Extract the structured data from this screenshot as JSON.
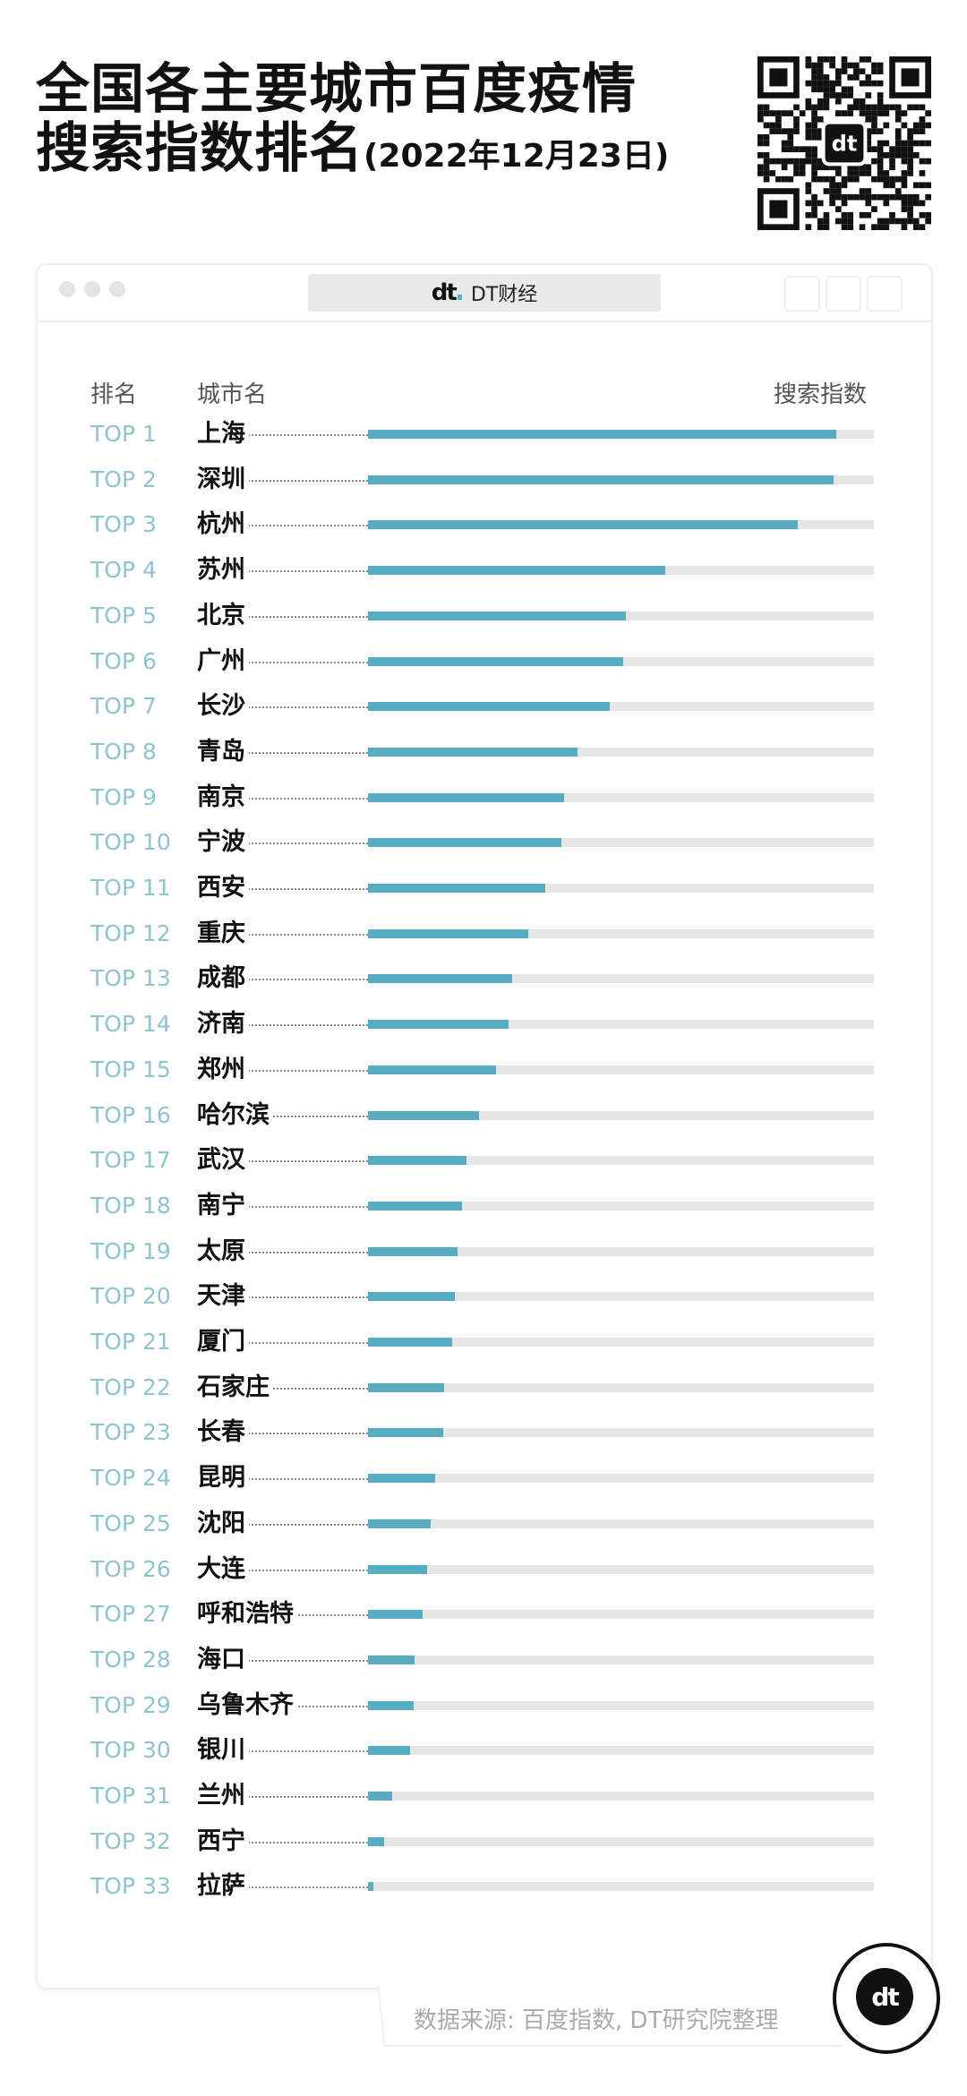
{
  "title": {
    "line1": "全国各主要城市百度疫情",
    "line2": "搜索指数排名",
    "date": "(2022年12月23日)"
  },
  "window": {
    "brand": "DT财经"
  },
  "colors": {
    "bar": "#56acc3",
    "track": "#e6e6e6",
    "rank": "#8fc4cf"
  },
  "footer": {
    "source": "数据来源: 百度指数, DT研究院整理"
  },
  "chart_data": {
    "type": "bar",
    "orientation": "horizontal",
    "columns": {
      "rank": "排名",
      "city": "城市名",
      "value": "搜索指数"
    },
    "value_unit": "fraction of maximum track length (estimated, no axis shown)",
    "rows": [
      {
        "rank": "TOP 1",
        "city": "上海",
        "value": 0.926
      },
      {
        "rank": "TOP 2",
        "city": "深圳",
        "value": 0.921
      },
      {
        "rank": "TOP 3",
        "city": "杭州",
        "value": 0.85
      },
      {
        "rank": "TOP 4",
        "city": "苏州",
        "value": 0.588
      },
      {
        "rank": "TOP 5",
        "city": "北京",
        "value": 0.509
      },
      {
        "rank": "TOP 6",
        "city": "广州",
        "value": 0.504
      },
      {
        "rank": "TOP 7",
        "city": "长沙",
        "value": 0.478
      },
      {
        "rank": "TOP 8",
        "city": "青岛",
        "value": 0.414
      },
      {
        "rank": "TOP 9",
        "city": "南京",
        "value": 0.388
      },
      {
        "rank": "TOP 10",
        "city": "宁波",
        "value": 0.383
      },
      {
        "rank": "TOP 11",
        "city": "西安",
        "value": 0.351
      },
      {
        "rank": "TOP 12",
        "city": "重庆",
        "value": 0.317
      },
      {
        "rank": "TOP 13",
        "city": "成都",
        "value": 0.285
      },
      {
        "rank": "TOP 14",
        "city": "济南",
        "value": 0.277
      },
      {
        "rank": "TOP 15",
        "city": "郑州",
        "value": 0.253
      },
      {
        "rank": "TOP 16",
        "city": "哈尔滨",
        "value": 0.219
      },
      {
        "rank": "TOP 17",
        "city": "武汉",
        "value": 0.195
      },
      {
        "rank": "TOP 18",
        "city": "南宁",
        "value": 0.185
      },
      {
        "rank": "TOP 19",
        "city": "太原",
        "value": 0.177
      },
      {
        "rank": "TOP 20",
        "city": "天津",
        "value": 0.172
      },
      {
        "rank": "TOP 21",
        "city": "厦门",
        "value": 0.166
      },
      {
        "rank": "TOP 22",
        "city": "石家庄",
        "value": 0.15
      },
      {
        "rank": "TOP 23",
        "city": "长春",
        "value": 0.148
      },
      {
        "rank": "TOP 24",
        "city": "昆明",
        "value": 0.132
      },
      {
        "rank": "TOP 25",
        "city": "沈阳",
        "value": 0.124
      },
      {
        "rank": "TOP 26",
        "city": "大连",
        "value": 0.116
      },
      {
        "rank": "TOP 27",
        "city": "呼和浩特",
        "value": 0.108
      },
      {
        "rank": "TOP 28",
        "city": "海口",
        "value": 0.092
      },
      {
        "rank": "TOP 29",
        "city": "乌鲁木齐",
        "value": 0.09
      },
      {
        "rank": "TOP 30",
        "city": "银川",
        "value": 0.084
      },
      {
        "rank": "TOP 31",
        "city": "兰州",
        "value": 0.047
      },
      {
        "rank": "TOP 32",
        "city": "西宁",
        "value": 0.032
      },
      {
        "rank": "TOP 33",
        "city": "拉萨",
        "value": 0.011
      }
    ]
  }
}
